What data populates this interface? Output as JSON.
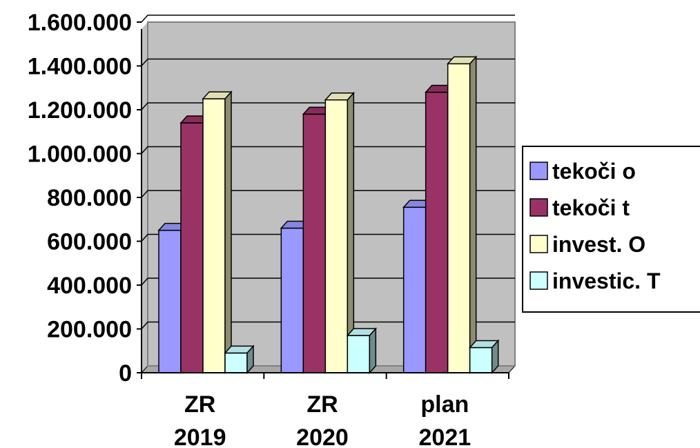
{
  "chart_data": {
    "type": "bar",
    "categories": [
      [
        "ZR",
        "2019"
      ],
      [
        "ZR",
        "2020"
      ],
      [
        "plan",
        "2021"
      ]
    ],
    "series": [
      {
        "name": "tekoči o",
        "color": "#9999ff",
        "values": [
          650000,
          660000,
          755000
        ]
      },
      {
        "name": "tekoči t",
        "color": "#993366",
        "values": [
          1140000,
          1180000,
          1280000
        ]
      },
      {
        "name": "invest. O",
        "color": "#ffffcc",
        "values": [
          1250000,
          1245000,
          1410000
        ]
      },
      {
        "name": "investic. T",
        "color": "#ccffff",
        "values": [
          90000,
          170000,
          115000
        ]
      }
    ],
    "yticks": [
      "0",
      "200.000",
      "400.000",
      "600.000",
      "800.000",
      "1.000.000",
      "1.200.000",
      "1.400.000",
      "1.600.000"
    ],
    "ylim": [
      0,
      1600000
    ],
    "grid": true,
    "legend_position": "right",
    "plot_background": "#c0c0c0",
    "grid_color": "#000000"
  }
}
